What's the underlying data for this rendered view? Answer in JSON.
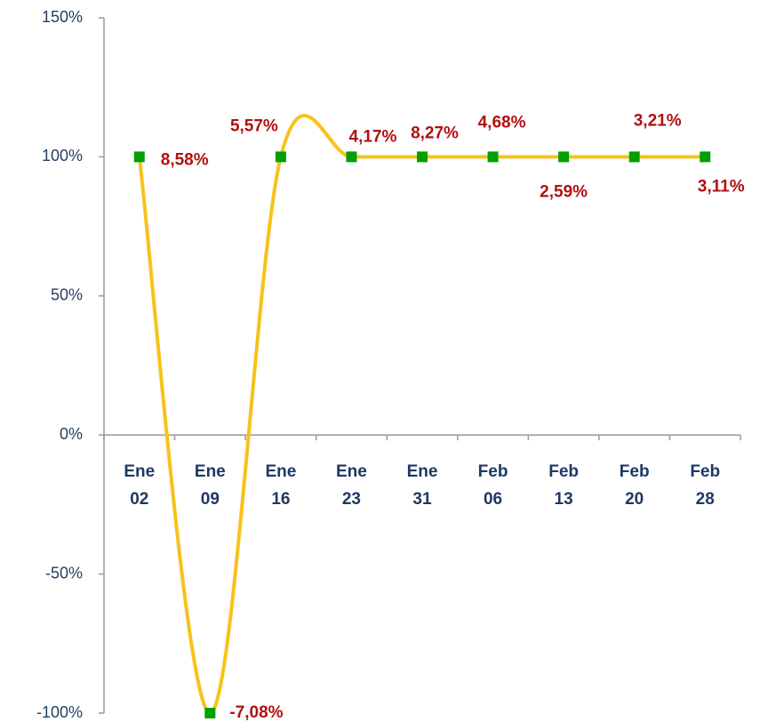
{
  "chart_data": {
    "type": "line",
    "categories": [
      "Ene 02",
      "Ene 09",
      "Ene 16",
      "Ene 23",
      "Ene 31",
      "Feb 06",
      "Feb 13",
      "Feb 20",
      "Feb 28"
    ],
    "series": [
      {
        "color": "#f7c31a",
        "marker_color": "#00a000",
        "values": [
          100,
          -100,
          100,
          100,
          100,
          100,
          100,
          100,
          100
        ]
      }
    ],
    "annotations": [
      "8,58%",
      "-7,08%",
      "5,57%",
      "4,17%",
      "8,27%",
      "4,68%",
      "2,59%",
      "3,21%",
      "3,11%"
    ],
    "ylim": [
      -100,
      150
    ],
    "yticks": [
      {
        "value": 150,
        "label": "150%"
      },
      {
        "value": 100,
        "label": "100%"
      },
      {
        "value": 50,
        "label": "50%"
      },
      {
        "value": 0,
        "label": "0%"
      },
      {
        "value": -50,
        "label": "-50%"
      },
      {
        "value": -100,
        "label": "-100%"
      }
    ],
    "grid": false
  }
}
